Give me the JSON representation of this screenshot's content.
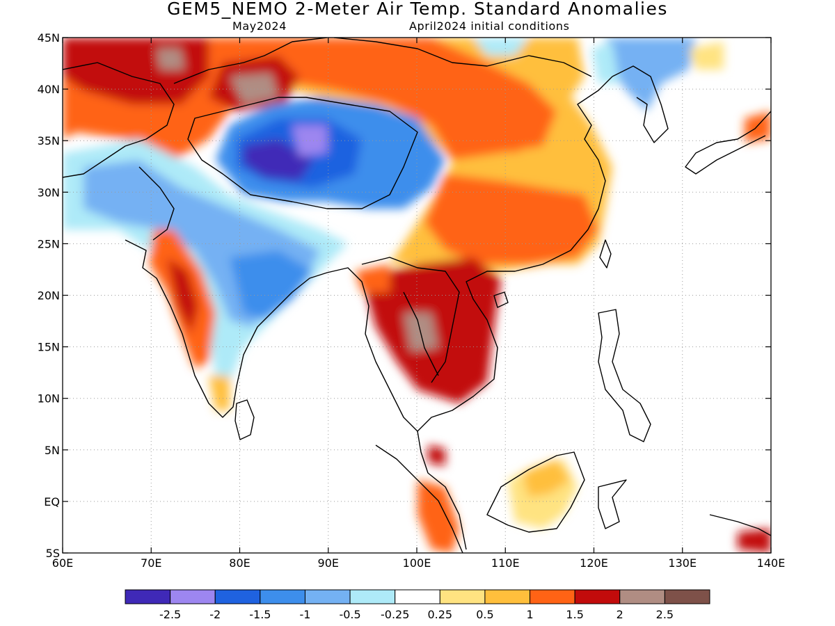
{
  "title": "GEM5_NEMO 2-Meter Air Temp. Standard Anomalies",
  "subtitle_left": "May2024",
  "subtitle_right": "April2024 initial conditions",
  "map": {
    "lon_range": [
      60,
      140
    ],
    "lat_range": [
      -5,
      45
    ],
    "lon_ticks": [
      "60E",
      "70E",
      "80E",
      "90E",
      "100E",
      "110E",
      "120E",
      "130E",
      "140E"
    ],
    "lat_ticks": [
      "45N",
      "40N",
      "35N",
      "30N",
      "25N",
      "20N",
      "15N",
      "10N",
      "5N",
      "EQ",
      "5S"
    ],
    "gridlines": "dotted"
  },
  "colorbar": {
    "colors": [
      "#3f29b7",
      "#9d86f0",
      "#1f62e0",
      "#3d8eec",
      "#74b1f3",
      "#aeeaf8",
      "#ffffff",
      "#ffe381",
      "#ffbf3c",
      "#ff6315",
      "#c20b0b",
      "#b08d83",
      "#7e5149"
    ],
    "labels": [
      "-2.5",
      "-2",
      "-1.5",
      "-1",
      "-0.5",
      "-0.25",
      "0.25",
      "0.5",
      "1",
      "1.5",
      "2",
      "2.5"
    ]
  }
}
